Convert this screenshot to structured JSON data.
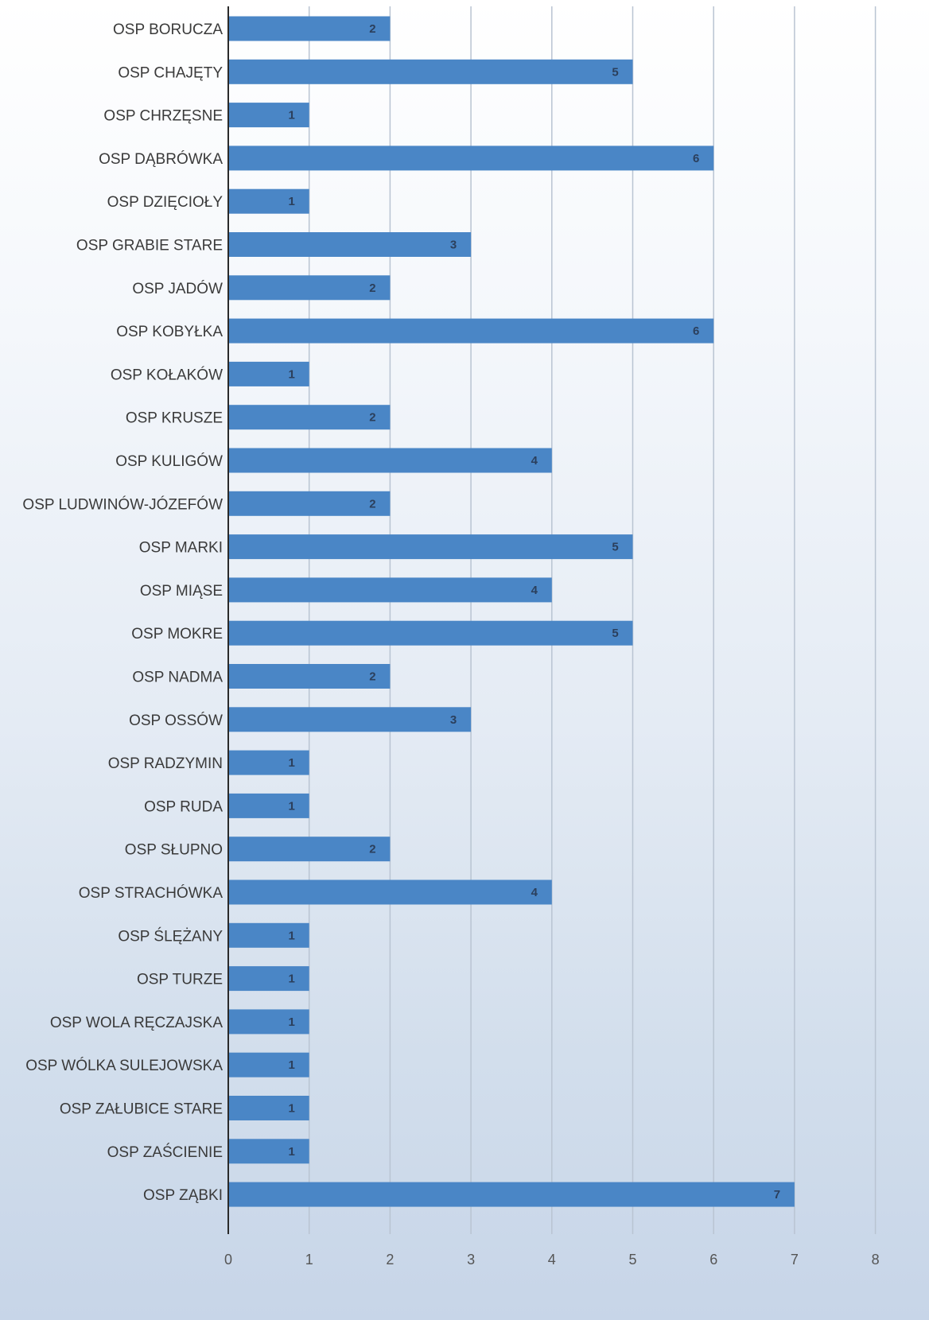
{
  "chart_data": {
    "type": "bar",
    "orientation": "horizontal",
    "categories": [
      "OSP BORUCZA",
      "OSP CHAJĘTY",
      "OSP CHRZĘSNE",
      "OSP DĄBRÓWKA",
      "OSP DZIĘCIOŁY",
      "OSP GRABIE STARE",
      "OSP JADÓW",
      "OSP KOBYŁKA",
      "OSP KOŁAKÓW",
      "OSP KRUSZE",
      "OSP KULIGÓW",
      "OSP LUDWINÓW-JÓZEFÓW",
      "OSP MARKI",
      "OSP MIĄSE",
      "OSP MOKRE",
      "OSP NADMA",
      "OSP OSSÓW",
      "OSP RADZYMIN",
      "OSP RUDA",
      "OSP SŁUPNO",
      "OSP STRACHÓWKA",
      "OSP ŚLĘŻANY",
      "OSP TURZE",
      "OSP WOLA RĘCZAJSKA",
      "OSP WÓLKA SULEJOWSKA",
      "OSP ZAŁUBICE STARE",
      "OSP ZAŚCIENIE",
      "OSP ZĄBKI"
    ],
    "values": [
      2,
      5,
      1,
      6,
      1,
      3,
      2,
      6,
      1,
      2,
      4,
      2,
      5,
      4,
      5,
      2,
      3,
      1,
      1,
      2,
      4,
      1,
      1,
      1,
      1,
      1,
      1,
      7
    ],
    "data_labels": [
      "2",
      "5",
      "1",
      "6",
      "1",
      "3",
      "2",
      "6",
      "1",
      "2",
      "4",
      "2",
      "5",
      "4",
      "5",
      "2",
      "3",
      "1",
      "1",
      "2",
      "4",
      "1",
      "1",
      "1",
      "1",
      "1",
      "1",
      "7"
    ],
    "xlim": [
      0,
      8
    ],
    "x_ticks": [
      "0",
      "1",
      "2",
      "3",
      "4",
      "5",
      "6",
      "7",
      "8"
    ],
    "grid": "vertical",
    "bar_color": "#4a86c6",
    "grid_color": "#b9c4d2",
    "axis_color": "#2a2a2a"
  }
}
